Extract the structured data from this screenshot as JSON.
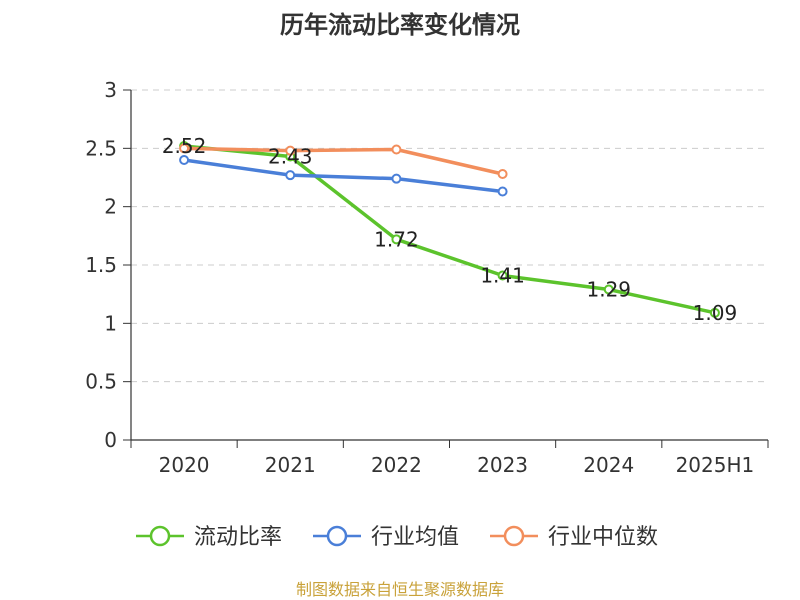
{
  "chart_data": {
    "type": "line",
    "title": "历年流动比率变化情况",
    "categories": [
      "2020",
      "2021",
      "2022",
      "2023",
      "2024",
      "2025H1"
    ],
    "ylim": [
      0,
      3
    ],
    "yticks": [
      "0",
      "0.5",
      "1",
      "1.5",
      "2",
      "2.5",
      "3"
    ],
    "grid": true,
    "legend_position": "bottom",
    "series": [
      {
        "name": "流动比率",
        "color": "#5cc32c",
        "values": [
          2.52,
          2.43,
          1.72,
          1.41,
          1.29,
          1.09
        ],
        "labels": [
          "2.52",
          "2.43",
          "1.72",
          "1.41",
          "1.29",
          "1.09"
        ]
      },
      {
        "name": "行业均值",
        "color": "#4a7fd8",
        "values": [
          2.4,
          2.27,
          2.24,
          2.13,
          null,
          null
        ]
      },
      {
        "name": "行业中位数",
        "color": "#f28e5c",
        "values": [
          2.5,
          2.48,
          2.49,
          2.28,
          null,
          null
        ]
      }
    ],
    "source": "制图数据来自恒生聚源数据库"
  }
}
